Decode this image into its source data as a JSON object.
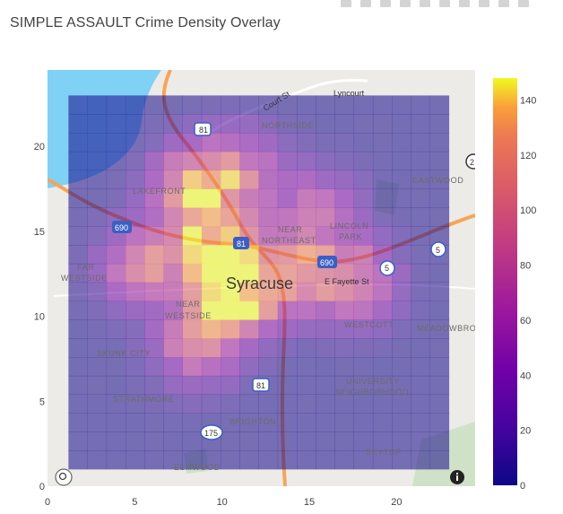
{
  "title": "SIMPLE ASSAULT Crime Density Overlay",
  "toolbar": {
    "buttons": [
      "camera-icon",
      "zoom-icon",
      "pan-icon",
      "lasso-icon",
      "select-icon",
      "zoom-in-icon",
      "zoom-out-icon",
      "autoscale-icon",
      "reset-icon",
      "plotly-logo-icon"
    ]
  },
  "map": {
    "city_label": "Syracuse",
    "labels": [
      {
        "key": "northside",
        "text": "NORTHSIDE",
        "kind": "place"
      },
      {
        "key": "lakefront",
        "text": "LAKEFRONT",
        "kind": "place"
      },
      {
        "key": "eastwood",
        "text": "EASTWOOD",
        "kind": "place"
      },
      {
        "key": "lincoln",
        "text": "LINCOLN",
        "kind": "place"
      },
      {
        "key": "park",
        "text": "PARK",
        "kind": "place"
      },
      {
        "key": "near1",
        "text": "NEAR",
        "kind": "place"
      },
      {
        "key": "northeast",
        "text": "NORTHEAST",
        "kind": "place"
      },
      {
        "key": "far",
        "text": "FAR",
        "kind": "place"
      },
      {
        "key": "westside1",
        "text": "WESTSIDE",
        "kind": "place"
      },
      {
        "key": "near2",
        "text": "NEAR",
        "kind": "place"
      },
      {
        "key": "westside2",
        "text": "WESTSIDE",
        "kind": "place"
      },
      {
        "key": "westcott",
        "text": "WESTCOTT",
        "kind": "place"
      },
      {
        "key": "meadowbrook",
        "text": "MEADOWBRO",
        "kind": "place"
      },
      {
        "key": "skunk",
        "text": "SKUNK CITY",
        "kind": "place"
      },
      {
        "key": "university",
        "text": "UNIVERSITY",
        "kind": "place"
      },
      {
        "key": "neighborhood",
        "text": "NEIGHBORHOOD",
        "kind": "place"
      },
      {
        "key": "strathmore",
        "text": "STRATHMORE",
        "kind": "place"
      },
      {
        "key": "brighton",
        "text": "BRIGHTON",
        "kind": "place"
      },
      {
        "key": "skytop",
        "text": "SKYTOP",
        "kind": "place"
      },
      {
        "key": "elmwood",
        "text": "ELMWOOD",
        "kind": "place"
      },
      {
        "key": "courtst",
        "text": "Court St",
        "kind": "street"
      },
      {
        "key": "lyncourt",
        "text": "Lyncourt",
        "kind": "street"
      },
      {
        "key": "fayette",
        "text": "E Fayette St",
        "kind": "street"
      }
    ],
    "shields": [
      {
        "key": "i81n",
        "text": "81"
      },
      {
        "key": "i690w",
        "text": "690"
      },
      {
        "key": "i81c",
        "text": "81"
      },
      {
        "key": "i690e",
        "text": "690"
      },
      {
        "key": "r5a",
        "text": "5"
      },
      {
        "key": "r5b",
        "text": "5"
      },
      {
        "key": "i81s",
        "text": "81"
      },
      {
        "key": "r175",
        "text": "175"
      },
      {
        "key": "r2",
        "text": "2"
      }
    ]
  },
  "chart_data": {
    "type": "heatmap",
    "title": "SIMPLE ASSAULT Crime Density Overlay",
    "xlabel": "",
    "ylabel": "",
    "x_ticks": [
      0,
      5,
      10,
      15,
      20
    ],
    "y_ticks": [
      0,
      5,
      10,
      15,
      20
    ],
    "xlim": [
      0,
      24.5
    ],
    "ylim": [
      0,
      24.5
    ],
    "grid_extent": {
      "x": [
        1.2,
        23
      ],
      "y": [
        1,
        23
      ]
    },
    "grid_size": {
      "cols": 20,
      "rows": 20
    },
    "colorscale": "plasma",
    "colorbar": {
      "min": 0,
      "max": 148,
      "ticks": [
        0,
        20,
        40,
        60,
        80,
        100,
        120,
        140
      ]
    },
    "baseline_value": 3,
    "hotspots": [
      {
        "x": 9.8,
        "y": 13.8,
        "value": 140
      },
      {
        "x": 10.8,
        "y": 11.0,
        "value": 125
      },
      {
        "x": 8.4,
        "y": 17.6,
        "value": 115
      },
      {
        "x": 14.0,
        "y": 12.8,
        "value": 105
      },
      {
        "x": 17.5,
        "y": 12.0,
        "value": 95
      },
      {
        "x": 5.5,
        "y": 13.0,
        "value": 88
      },
      {
        "x": 11.0,
        "y": 18.6,
        "value": 72
      },
      {
        "x": 8.5,
        "y": 8.2,
        "value": 78
      },
      {
        "x": 15.5,
        "y": 16.5,
        "value": 55
      }
    ]
  },
  "colors": {
    "water": "#7fd1f5",
    "land": "#ecebe7",
    "park": "#cfe2c8",
    "highway": "#f7a457",
    "interstate_shield": "#3b5fc4",
    "axis_text": "#444444"
  }
}
